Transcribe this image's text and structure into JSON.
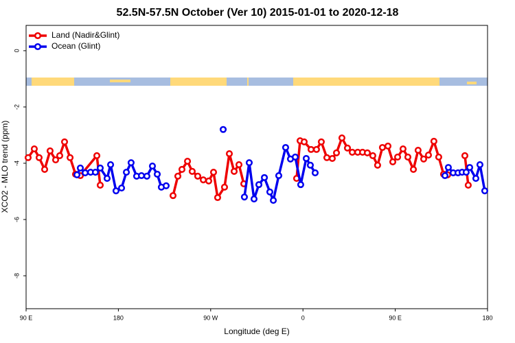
{
  "chart_data": {
    "type": "line",
    "title": "52.5N-57.5N October (Ver 10)   2015-01-01 to 2020-12-18",
    "x_label": "Longitude (deg E)",
    "y_label": "XCO2 - MLO trend (ppm)",
    "xlim": [
      90,
      540
    ],
    "xticks": [
      {
        "value": 90,
        "label": "90 E"
      },
      {
        "value": 180,
        "label": "180"
      },
      {
        "value": 270,
        "label": "90 W"
      },
      {
        "value": 360,
        "label": "0"
      },
      {
        "value": 450,
        "label": "90 E"
      },
      {
        "value": 540,
        "label": "180"
      }
    ],
    "ylim": [
      -9.17,
      0.9
    ],
    "yticks": [
      0,
      -2,
      -4,
      -6,
      -8
    ],
    "legend": "top-left",
    "series": [
      {
        "name": "Land (Nadir&Glint)",
        "color": "#ee0000",
        "x": [
          92.0,
          98.0,
          102.7,
          108.1,
          113.4,
          118.8,
          122.8,
          127.5,
          132.9,
          138.2,
          142.9,
          159.0,
          162.3,
          null,
          233.3,
          238.0,
          242.0,
          247.4,
          252.0,
          257.4,
          262.8,
          268.1,
          272.8,
          276.8,
          283.5,
          288.2,
          292.9,
          297.6,
          302.3,
          null,
          353.8,
          357.2,
          361.2,
          367.9,
          373.2,
          377.9,
          383.3,
          388.6,
          392.7,
          398.0,
          403.4,
          408.1,
          413.4,
          418.1,
          422.8,
          428.1,
          432.8,
          437.5,
          442.9,
          447.6,
          452.3,
          457.6,
          462.3,
          467.7,
          472.3,
          477.7,
          482.4,
          487.7,
          492.4,
          497.1,
          501.1,
          null,
          517.9,
          521.2
        ],
        "values": [
          -3.8,
          -3.49,
          -3.8,
          -4.22,
          -3.56,
          -3.88,
          -3.73,
          -3.24,
          -3.8,
          -4.39,
          -4.44,
          -3.73,
          -4.78,
          null,
          -5.15,
          -4.46,
          -4.22,
          -3.93,
          -4.29,
          -4.46,
          -4.59,
          -4.63,
          -4.32,
          -5.22,
          -4.85,
          -3.66,
          -4.29,
          -4.05,
          -4.73,
          null,
          -4.54,
          -3.2,
          -3.24,
          -3.51,
          -3.51,
          -3.24,
          -3.8,
          -3.83,
          -3.63,
          -3.1,
          -3.46,
          -3.61,
          -3.61,
          -3.61,
          -3.63,
          -3.73,
          -4.07,
          -3.44,
          -3.39,
          -3.95,
          -3.78,
          -3.49,
          -3.78,
          -4.22,
          -3.54,
          -3.85,
          -3.71,
          -3.22,
          -3.78,
          -4.39,
          -4.41,
          null,
          -3.73,
          -4.78
        ]
      },
      {
        "name": "Ocean (Glint)",
        "color": "#0000ee",
        "x": [
          139.6,
          142.9,
          147.6,
          152.9,
          157.6,
          162.3,
          169.0,
          172.4,
          177.7,
          183.1,
          187.8,
          192.4,
          197.8,
          202.5,
          207.8,
          213.2,
          217.9,
          221.9,
          226.6,
          null,
          282.2,
          null,
          302.9,
          307.6,
          312.3,
          317.0,
          322.4,
          327.7,
          331.1,
          336.4,
          343.1,
          347.8,
          352.5,
          357.8,
          363.2,
          367.2,
          371.9,
          null,
          498.5,
          501.8,
          506.5,
          511.2,
          515.2,
          519.2,
          522.6,
          528.6,
          532.6,
          537.3
        ],
        "values": [
          -4.41,
          -4.17,
          -4.34,
          -4.32,
          -4.32,
          -4.17,
          -4.54,
          -4.05,
          -4.98,
          -4.88,
          -4.32,
          -3.98,
          -4.46,
          -4.44,
          -4.46,
          -4.1,
          -4.39,
          -4.85,
          -4.8,
          null,
          -2.8,
          null,
          -5.2,
          -3.98,
          -5.27,
          -4.76,
          -4.51,
          -5.02,
          -5.32,
          -4.44,
          -3.44,
          -3.85,
          -3.78,
          -4.76,
          -3.83,
          -4.07,
          -4.34,
          null,
          -4.44,
          -4.15,
          -4.34,
          -4.34,
          -4.32,
          -4.32,
          -4.15,
          -4.54,
          -4.05,
          -4.98
        ]
      }
    ]
  }
}
